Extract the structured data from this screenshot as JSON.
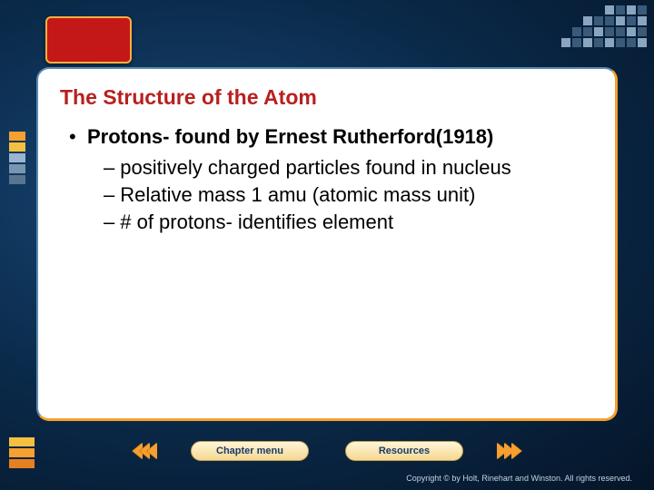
{
  "title": "The Structure of the Atom",
  "bullet": {
    "main": "Protons- found by Ernest Rutherford(1918)",
    "subs": [
      "positively charged particles found in nucleus",
      "Relative mass 1 amu (atomic mass unit)",
      "# of protons- identifies element"
    ]
  },
  "buttons": {
    "chapter": "Chapter menu",
    "resources": "Resources"
  },
  "copyright": "Copyright © by Holt, Rinehart and Winston. All rights reserved.",
  "colors": {
    "title": "#b82020",
    "accent_orange": "#f5a030",
    "accent_red": "#c41818",
    "bg_dark": "#0a2a4a",
    "panel_bg": "#ffffff"
  },
  "side_bar_colors": [
    "#f5a030",
    "#f5c040",
    "#9ab5d0",
    "#7a95b0",
    "#5a7590"
  ],
  "bottom_bar_colors": [
    "#f5c040",
    "#f5a030",
    "#e58020"
  ]
}
